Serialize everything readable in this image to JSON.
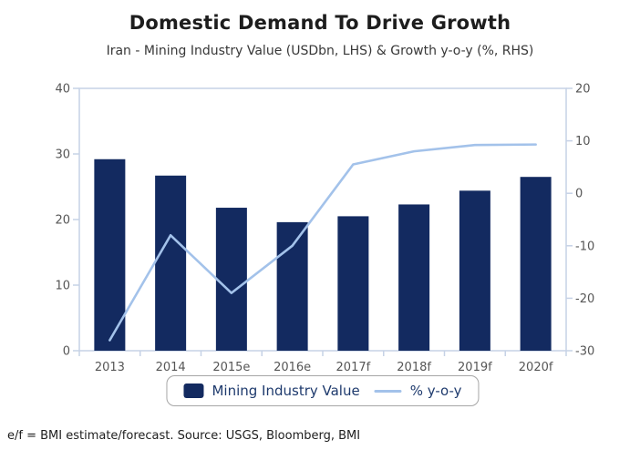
{
  "chart_data": {
    "type": "bar",
    "title": "Domestic Demand To Drive Growth",
    "subtitle": "Iran - Mining Industry Value (USDbn, LHS) & Growth y-o-y (%, RHS)",
    "categories": [
      "2013",
      "2014",
      "2015e",
      "2016e",
      "2017f",
      "2018f",
      "2019f",
      "2020f"
    ],
    "series": [
      {
        "name": "Mining Industry Value",
        "type": "bar",
        "axis": "left",
        "values": [
          29.2,
          26.7,
          21.8,
          19.6,
          20.5,
          22.3,
          24.4,
          26.5
        ]
      },
      {
        "name": "% y-o-y",
        "type": "line",
        "axis": "right",
        "values": [
          -28,
          -8,
          -19,
          -10,
          5.5,
          8,
          9.2,
          9.3
        ]
      }
    ],
    "left_axis": {
      "min": 0,
      "max": 40,
      "tick_step": 10,
      "ticks": [
        0,
        10,
        20,
        30,
        40
      ]
    },
    "right_axis": {
      "min": -30,
      "max": 20,
      "tick_step": 10,
      "ticks": [
        -30,
        -20,
        -10,
        0,
        10,
        20
      ]
    },
    "grid": false,
    "legend_position": "bottom",
    "colors": {
      "bar": "#132a60",
      "line": "#a3c2ea",
      "axis": "#c6d2e6",
      "tick_label": "#565656",
      "legend_text": "#1e3a6d",
      "legend_border": "#a6a6a6"
    }
  },
  "footer": {
    "note": "e/f = BMI estimate/forecast. Source: USGS, Bloomberg, BMI"
  }
}
